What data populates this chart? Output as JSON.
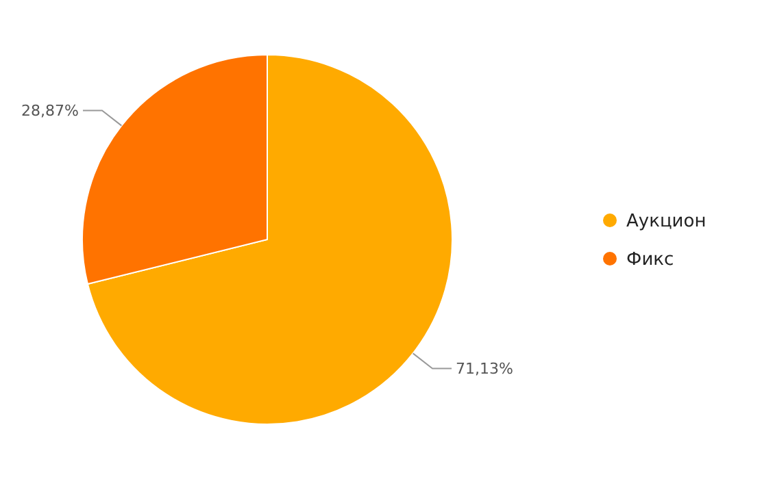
{
  "chart_data": {
    "type": "pie",
    "categories": [
      "Аукцион",
      "Фикс"
    ],
    "values": [
      71.13,
      28.87
    ],
    "colors": [
      "#ffaa00",
      "#ff7300"
    ],
    "value_labels": [
      "71,13%",
      "28,87%"
    ],
    "legend": "right"
  }
}
